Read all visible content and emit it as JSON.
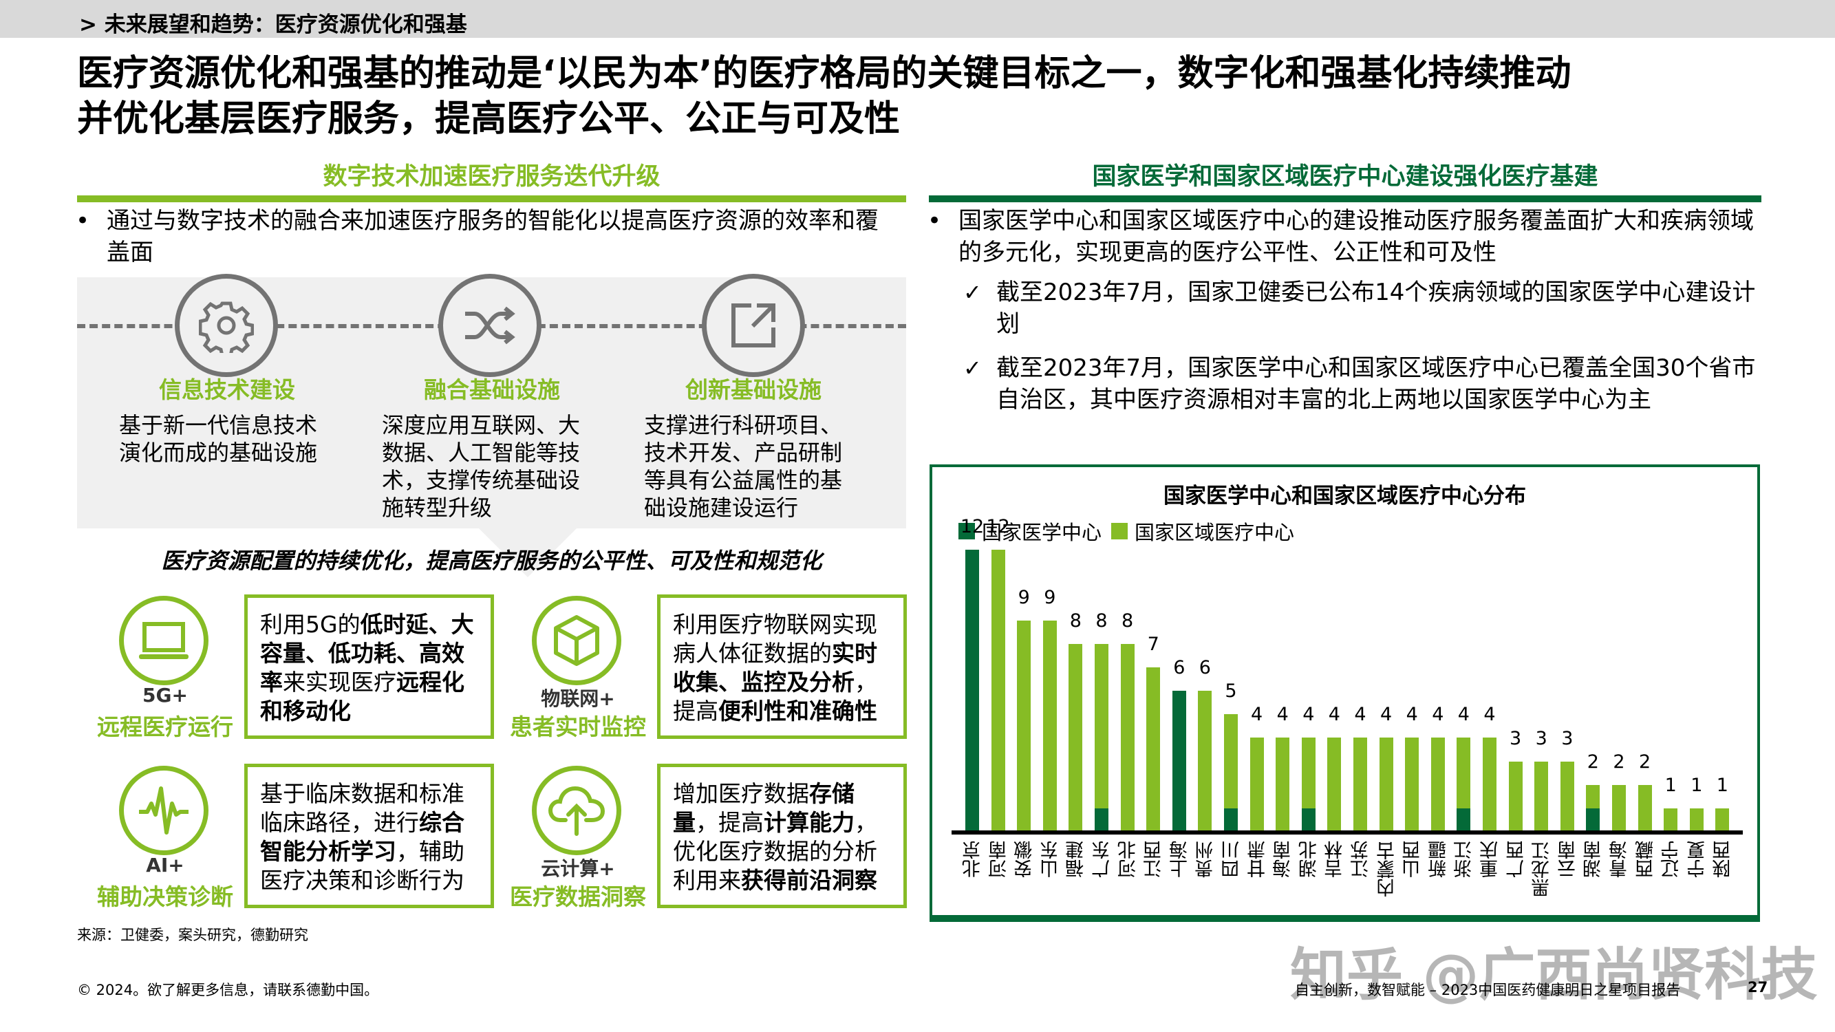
{
  "breadcrumb": "> 未来展望和趋势：医疗资源优化和强基",
  "title": {
    "line1": "医疗资源优化和强基的推动是‘以民为本’的医疗格局的关键目标之一，数字化和强基化持续推动",
    "line2": "并优化基层医疗服务，提高医疗公平、公正与可及性"
  },
  "left": {
    "heading": "数字技术加速医疗服务迭代升级",
    "bullet_marker": "•",
    "bullet": "通过与数字技术的融合来加速医疗服务的智能化以提高医疗资源的效率和覆盖面",
    "pillars": [
      {
        "icon": "gear-icon",
        "title": "信息技术建设",
        "text": "基于新一代信息技术演化而成的基础设施"
      },
      {
        "icon": "shuffle-icon",
        "title": "融合基础设施",
        "text": "深度应用互联网、大数据、人工智能等技术，支撑传统基础设施转型升级"
      },
      {
        "icon": "external-link-icon",
        "title": "创新基础设施",
        "text": "支撑进行科研项目、技术开发、产品研制等具有公益属性的基础设施建设运行"
      }
    ],
    "arrow_caption": "医疗资源配置的持续优化，提高医疗服务的公平性、可及性和规范化",
    "cards": [
      {
        "icon": "laptop-icon",
        "sub1": "5G+",
        "sub2": "远程医疗运行",
        "segments": [
          [
            "利用5G的",
            false
          ],
          [
            "低时延、大容量、低功耗、高效率",
            true
          ],
          [
            "来实现医疗",
            false
          ],
          [
            "远程化和移动化",
            true
          ]
        ]
      },
      {
        "icon": "cube-icon",
        "sub1": "物联网+",
        "sub2": "患者实时监控",
        "segments": [
          [
            "利用医疗物联网实现病人体征数据的",
            false
          ],
          [
            "实时收集、监控及分析",
            true
          ],
          [
            "，提高",
            false
          ],
          [
            "便利性和准确性",
            true
          ]
        ]
      },
      {
        "icon": "pulse-icon",
        "sub1": "AI+",
        "sub2": "辅助决策诊断",
        "segments": [
          [
            "基于临床数据和标准临床路径，进行",
            false
          ],
          [
            "综合智能分析学习",
            true
          ],
          [
            "，辅助医疗决策和诊断行为",
            false
          ]
        ]
      },
      {
        "icon": "cloud-upload-icon",
        "sub1": "云计算+",
        "sub2": "医疗数据洞察",
        "segments": [
          [
            "增加医疗数据",
            false
          ],
          [
            "存储量",
            true
          ],
          [
            "，提高",
            false
          ],
          [
            "计算能力",
            true
          ],
          [
            "，优化医疗数据的分析利用来",
            false
          ],
          [
            "获得前沿洞察",
            true
          ]
        ]
      }
    ]
  },
  "right": {
    "heading": "国家医学和国家区域医疗中心建设强化医疗基建",
    "bullet_marker": "•",
    "bullet": "国家医学中心和国家区域医疗中心的建设推动医疗服务覆盖面扩大和疾病领域的多元化，实现更高的医疗公平性、公正性和可及性",
    "check_marker": "✓",
    "checks": [
      "截至2023年7月，国家卫健委已公布14个疾病领域的国家医学中心建设计划",
      "截至2023年7月，国家医学中心和国家区域医疗中心已覆盖全国30个省市自治区，其中医疗资源相对丰富的北上两地以国家医学中心为主"
    ]
  },
  "chart_data": {
    "type": "bar",
    "stacked": true,
    "title": "国家医学中心和国家区域医疗中心分布",
    "legend": [
      "国家医学中心",
      "国家区域医疗中心"
    ],
    "legend_position": "top-left",
    "colors": {
      "national": "#046a38",
      "regional": "#86bc25"
    },
    "categories": [
      "北京",
      "河南",
      "安徽",
      "山东",
      "福建",
      "广东",
      "河北",
      "江西",
      "上海",
      "贵州",
      "四川",
      "甘肃",
      "海南",
      "湖北",
      "吉林",
      "江苏",
      "内蒙古",
      "山西",
      "新疆",
      "浙江",
      "重庆",
      "广西",
      "黑龙江",
      "云南",
      "湖南",
      "青海",
      "西藏",
      "辽宁",
      "宁夏",
      "陕西"
    ],
    "series": [
      {
        "name": "国家医学中心",
        "values": [
          12,
          0,
          0,
          0,
          0,
          1,
          0,
          0,
          6,
          0,
          1,
          0,
          0,
          1,
          0,
          0,
          0,
          0,
          0,
          1,
          0,
          0,
          0,
          0,
          1,
          0,
          0,
          0,
          0,
          0
        ]
      },
      {
        "name": "国家区域医疗中心",
        "values": [
          0,
          12,
          9,
          9,
          8,
          7,
          8,
          7,
          0,
          6,
          4,
          4,
          4,
          3,
          4,
          4,
          4,
          4,
          4,
          3,
          4,
          3,
          3,
          3,
          1,
          2,
          2,
          1,
          1,
          1
        ]
      }
    ],
    "totals": [
      12,
      12,
      9,
      9,
      8,
      8,
      8,
      7,
      6,
      6,
      5,
      4,
      4,
      4,
      4,
      4,
      4,
      4,
      4,
      4,
      4,
      3,
      3,
      3,
      2,
      2,
      2,
      1,
      1,
      1
    ],
    "xlabel": "",
    "ylabel": "",
    "ylim": [
      0,
      12
    ],
    "grid": false
  },
  "footer": {
    "source": "来源：卫健委，案头研究，德勤研究",
    "copyright": "© 2024。欲了解更多信息，请联系德勤中国。",
    "report": "自主创新，数智赋能 – 2023中国医药健康明日之星项目报告",
    "page": "27",
    "watermark": "知乎 @广西尚贤科技"
  }
}
